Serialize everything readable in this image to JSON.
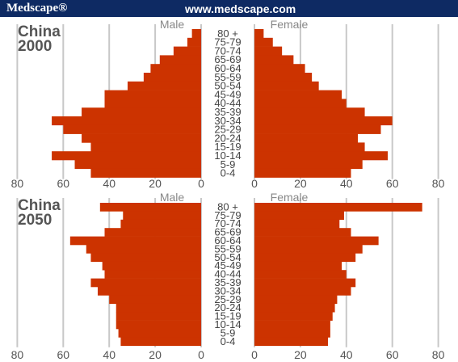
{
  "header": {
    "brand": "Medscape®",
    "url": "www.medscape.com"
  },
  "colors": {
    "header_bg": "#0e2a63",
    "bar": "#cc3300",
    "grid": "#c8c8c8"
  },
  "chart_data": [
    {
      "type": "bar",
      "orientation": "horizontal-population-pyramid",
      "title_line1": "China",
      "title_line2": "2000",
      "left_label": "Male",
      "right_label": "Female",
      "categories": [
        "80 +",
        "75-79",
        "70-74",
        "65-69",
        "60-64",
        "55-59",
        "50-54",
        "45-49",
        "40-44",
        "35-39",
        "30-34",
        "25-29",
        "20-24",
        "15-19",
        "10-14",
        "5-9",
        "0-4"
      ],
      "series": [
        {
          "name": "Male",
          "values": [
            4,
            6,
            12,
            18,
            22,
            25,
            32,
            42,
            42,
            52,
            65,
            60,
            52,
            48,
            65,
            55,
            48
          ]
        },
        {
          "name": "Female",
          "values": [
            4,
            8,
            12,
            17,
            22,
            25,
            28,
            38,
            40,
            48,
            60,
            55,
            45,
            48,
            58,
            47,
            42
          ]
        }
      ],
      "x_ticks": [
        "80",
        "60",
        "40",
        "20",
        "0",
        "0",
        "20",
        "40",
        "60",
        "80"
      ],
      "xlim": [
        0,
        80
      ],
      "grid": true
    },
    {
      "type": "bar",
      "orientation": "horizontal-population-pyramid",
      "title_line1": "China",
      "title_line2": "2050",
      "left_label": "Male",
      "right_label": "Female",
      "categories": [
        "80 +",
        "75-79",
        "70-74",
        "65-69",
        "60-64",
        "55-59",
        "50-54",
        "45-49",
        "40-44",
        "35-39",
        "30-34",
        "25-29",
        "20-24",
        "15-19",
        "10-14",
        "5-9",
        "0-4"
      ],
      "series": [
        {
          "name": "Male",
          "values": [
            44,
            34,
            35,
            42,
            57,
            50,
            48,
            43,
            42,
            48,
            45,
            40,
            37,
            37,
            37,
            36,
            35
          ]
        },
        {
          "name": "Female",
          "values": [
            73,
            39,
            37,
            42,
            54,
            47,
            44,
            38,
            40,
            44,
            42,
            36,
            35,
            34,
            33,
            33,
            32
          ]
        }
      ],
      "x_ticks": [
        "80",
        "60",
        "40",
        "20",
        "0",
        "0",
        "20",
        "40",
        "60",
        "80"
      ],
      "xlim": [
        0,
        80
      ],
      "grid": true
    }
  ]
}
